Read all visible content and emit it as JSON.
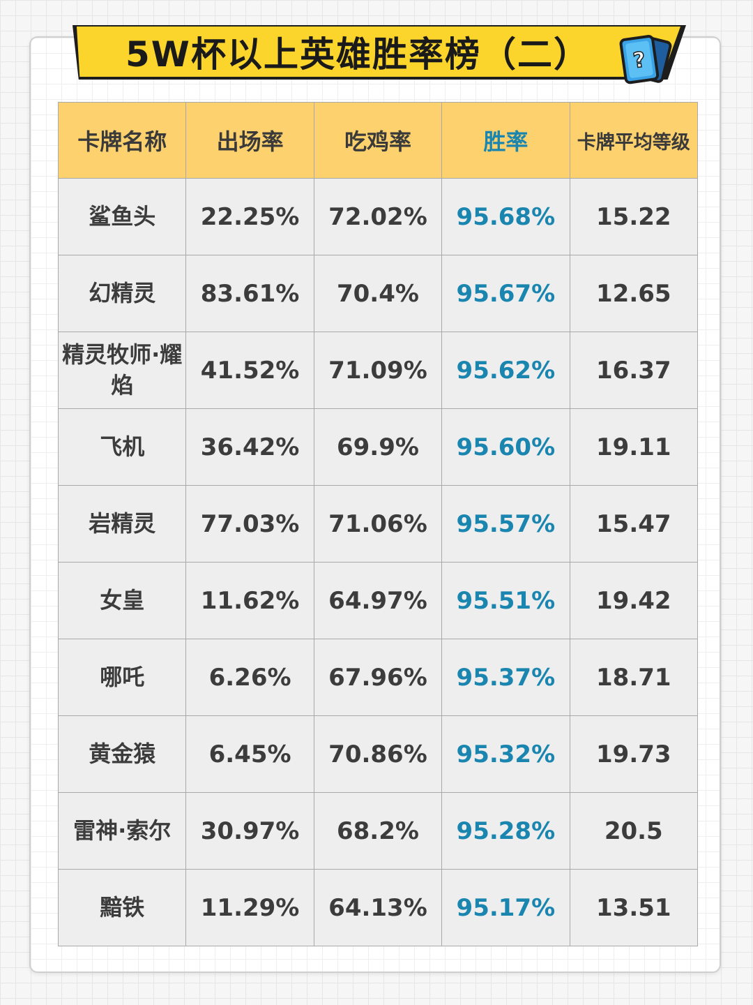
{
  "title": "5W杯以上英雄胜率榜（二）",
  "title_icon": "question-card-icon",
  "colors": {
    "banner": "#fbd52b",
    "header": "#fdd26e",
    "cell": "#eeeeee",
    "highlight": "#1a86b0"
  },
  "table": {
    "headers": [
      "卡牌名称",
      "出场率",
      "吃鸡率",
      "胜率",
      "卡牌平均等级"
    ],
    "rows": [
      [
        "鲨鱼头",
        "22.25%",
        "72.02%",
        "95.68%",
        "15.22"
      ],
      [
        "幻精灵",
        "83.61%",
        "70.4%",
        "95.67%",
        "12.65"
      ],
      [
        "精灵牧师·耀焰",
        "41.52%",
        "71.09%",
        "95.62%",
        "16.37"
      ],
      [
        "飞机",
        "36.42%",
        "69.9%",
        "95.60%",
        "19.11"
      ],
      [
        "岩精灵",
        "77.03%",
        "71.06%",
        "95.57%",
        "15.47"
      ],
      [
        "女皇",
        "11.62%",
        "64.97%",
        "95.51%",
        "19.42"
      ],
      [
        "哪吒",
        "6.26%",
        "67.96%",
        "95.37%",
        "18.71"
      ],
      [
        "黄金猿",
        "6.45%",
        "70.86%",
        "95.32%",
        "19.73"
      ],
      [
        "雷神·索尔",
        "30.97%",
        "68.2%",
        "95.28%",
        "20.5"
      ],
      [
        "黯铁",
        "11.29%",
        "64.13%",
        "95.17%",
        "13.51"
      ]
    ]
  }
}
